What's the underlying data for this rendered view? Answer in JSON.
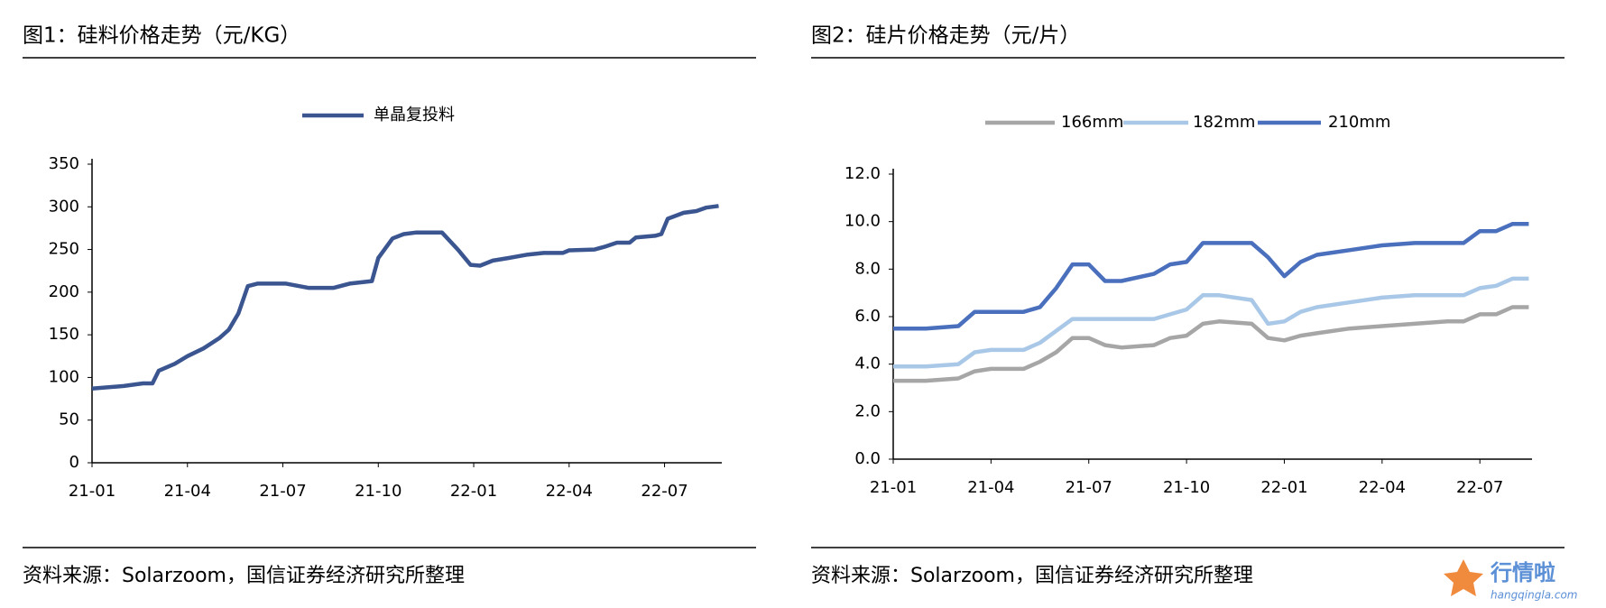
{
  "chart_data": [
    {
      "type": "line",
      "title": "图1：硅料价格走势（元/KG）",
      "source": "资料来源：Solarzoom，国信证券经济研究所整理",
      "x": [
        0,
        1,
        1.6,
        1.9,
        2.1,
        2.6,
        3,
        3.5,
        4,
        4.3,
        4.6,
        4.9,
        5.2,
        6.1,
        6.8,
        7.6,
        8.1,
        8.8,
        9.0,
        9.45,
        9.8,
        10.2,
        11.0,
        11.5,
        11.9,
        12.2,
        12.6,
        13.1,
        13.7,
        14.2,
        14.8,
        15.0,
        15.8,
        16.1,
        16.5,
        16.9,
        17.1,
        17.7,
        17.9,
        18.1,
        18.6,
        19.0,
        19.3,
        19.7
      ],
      "series": [
        {
          "name": "单晶复投料",
          "color": "#3a5590",
          "values": [
            87,
            90,
            93,
            93,
            108,
            116,
            125,
            134,
            146,
            156,
            175,
            207,
            210,
            210,
            205,
            205,
            210,
            213,
            240,
            263,
            268,
            270,
            270,
            250,
            232,
            231,
            237,
            240,
            244,
            246,
            246,
            249,
            250,
            253,
            258,
            258,
            264,
            266,
            268,
            286,
            293,
            295,
            299,
            301
          ]
        }
      ],
      "xlim": [
        0,
        19.8
      ],
      "xticks": [
        {
          "value": 0,
          "label": "21-01"
        },
        {
          "value": 3,
          "label": "21-04"
        },
        {
          "value": 6,
          "label": "21-07"
        },
        {
          "value": 9,
          "label": "21-10"
        },
        {
          "value": 12,
          "label": "22-01"
        },
        {
          "value": 15,
          "label": "22-04"
        },
        {
          "value": 18,
          "label": "22-07"
        }
      ],
      "ylim": [
        0,
        350
      ],
      "yticks": [
        0,
        50,
        100,
        150,
        200,
        250,
        300,
        350
      ],
      "legend": "top"
    },
    {
      "type": "line",
      "title": "图2：硅片价格走势（元/片）",
      "source": "资料来源：Solarzoom，国信证券经济研究所整理",
      "x": [
        0,
        1,
        2,
        2.5,
        3,
        4,
        4.5,
        5,
        5.5,
        6,
        6.5,
        7,
        8,
        8.5,
        9,
        9.5,
        10,
        11,
        11.5,
        12,
        12.5,
        13,
        14,
        15,
        16,
        17,
        17.5,
        18,
        18.5,
        19,
        19.5
      ],
      "series": [
        {
          "name": "166mm",
          "color": "#a6a6a6",
          "values": [
            3.3,
            3.3,
            3.4,
            3.7,
            3.8,
            3.8,
            4.1,
            4.5,
            5.1,
            5.1,
            4.8,
            4.7,
            4.8,
            5.1,
            5.2,
            5.7,
            5.8,
            5.7,
            5.1,
            5.0,
            5.2,
            5.3,
            5.5,
            5.6,
            5.7,
            5.8,
            5.8,
            6.1,
            6.1,
            6.4,
            6.4
          ]
        },
        {
          "name": "182mm",
          "color": "#a9c8e8",
          "values": [
            3.9,
            3.9,
            4.0,
            4.5,
            4.6,
            4.6,
            4.9,
            5.4,
            5.9,
            5.9,
            5.9,
            5.9,
            5.9,
            6.1,
            6.3,
            6.9,
            6.9,
            6.7,
            5.7,
            5.8,
            6.2,
            6.4,
            6.6,
            6.8,
            6.9,
            6.9,
            6.9,
            7.2,
            7.3,
            7.6,
            7.6
          ]
        },
        {
          "name": "210mm",
          "color": "#4a6fbd",
          "values": [
            5.5,
            5.5,
            5.6,
            6.2,
            6.2,
            6.2,
            6.4,
            7.2,
            8.2,
            8.2,
            7.5,
            7.5,
            7.8,
            8.2,
            8.3,
            9.1,
            9.1,
            9.1,
            8.5,
            7.7,
            8.3,
            8.6,
            8.8,
            9.0,
            9.1,
            9.1,
            9.1,
            9.6,
            9.6,
            9.9,
            9.9
          ]
        }
      ],
      "xlim": [
        0,
        19.6
      ],
      "xticks": [
        {
          "value": 0,
          "label": "21-01"
        },
        {
          "value": 3,
          "label": "21-04"
        },
        {
          "value": 6,
          "label": "21-07"
        },
        {
          "value": 9,
          "label": "21-10"
        },
        {
          "value": 12,
          "label": "22-01"
        },
        {
          "value": 15,
          "label": "22-04"
        },
        {
          "value": 18,
          "label": "22-07"
        }
      ],
      "ylim": [
        0,
        12
      ],
      "yticks": [
        {
          "value": 0,
          "label": "0.0"
        },
        {
          "value": 2,
          "label": "2.0"
        },
        {
          "value": 4,
          "label": "4.0"
        },
        {
          "value": 6,
          "label": "6.0"
        },
        {
          "value": 8,
          "label": "8.0"
        },
        {
          "value": 10,
          "label": "10.0"
        },
        {
          "value": 12,
          "label": "12.0"
        }
      ],
      "legend": "top"
    }
  ],
  "watermark": {
    "name": "行情啦",
    "url": "hangqingla.com"
  }
}
